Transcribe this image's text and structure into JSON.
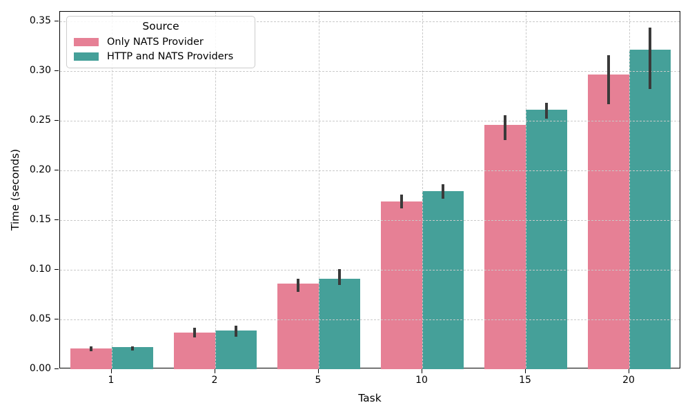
{
  "chart_data": {
    "type": "bar",
    "title": "",
    "xlabel": "Task",
    "ylabel": "Time (seconds)",
    "categories": [
      "1",
      "2",
      "5",
      "10",
      "15",
      "20"
    ],
    "series": [
      {
        "name": "Only NATS Provider",
        "color": "#e68095",
        "values": [
          0.021,
          0.037,
          0.086,
          0.169,
          0.246,
          0.297
        ],
        "err_low": [
          0.018,
          0.032,
          0.078,
          0.162,
          0.231,
          0.267
        ],
        "err_high": [
          0.023,
          0.042,
          0.091,
          0.176,
          0.256,
          0.316
        ]
      },
      {
        "name": "HTTP and NATS Providers",
        "color": "#45a099",
        "values": [
          0.022,
          0.039,
          0.091,
          0.179,
          0.261,
          0.322
        ],
        "err_low": [
          0.019,
          0.033,
          0.085,
          0.172,
          0.252,
          0.282
        ],
        "err_high": [
          0.023,
          0.044,
          0.101,
          0.186,
          0.268,
          0.344
        ]
      }
    ],
    "legend": {
      "title": "Source",
      "position": "upper-left"
    },
    "ylim": [
      0,
      0.36
    ],
    "yticks": [
      "0.00",
      "0.05",
      "0.10",
      "0.15",
      "0.20",
      "0.25",
      "0.30",
      "0.35"
    ],
    "grid": "dashed, horizontal and vertical",
    "errorbar_color": "#3a3a3a"
  }
}
